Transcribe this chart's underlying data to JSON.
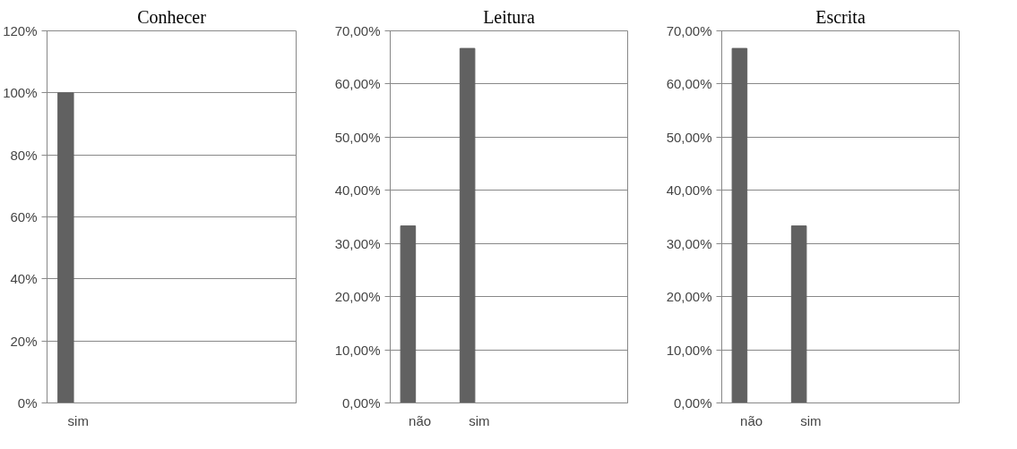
{
  "chart_data": [
    {
      "type": "bar",
      "title": "Conhecer",
      "categories": [
        "sim",
        null,
        null,
        null
      ],
      "series": [
        {
          "color": "#616161",
          "values": [
            100,
            null,
            null,
            null
          ]
        }
      ],
      "ylim": [
        0,
        120
      ],
      "yticks": [
        {
          "value": 0,
          "label": "0%"
        },
        {
          "value": 20,
          "label": "20%"
        },
        {
          "value": 40,
          "label": "40%"
        },
        {
          "value": 60,
          "label": "60%"
        },
        {
          "value": 80,
          "label": "80%"
        },
        {
          "value": 100,
          "label": "100%"
        },
        {
          "value": 120,
          "label": "120%"
        }
      ],
      "grid": "y"
    },
    {
      "type": "bar",
      "title": "Leitura",
      "categories": [
        "não",
        "sim",
        null,
        null
      ],
      "series": [
        {
          "color": "#616161",
          "values": [
            33.3,
            66.7,
            null,
            null
          ]
        }
      ],
      "ylim": [
        0,
        70
      ],
      "yticks": [
        {
          "value": 0,
          "label": "0,00%"
        },
        {
          "value": 10,
          "label": "10,00%"
        },
        {
          "value": 20,
          "label": "20,00%"
        },
        {
          "value": 30,
          "label": "30,00%"
        },
        {
          "value": 40,
          "label": "40,00%"
        },
        {
          "value": 50,
          "label": "50,00%"
        },
        {
          "value": 60,
          "label": "60,00%"
        },
        {
          "value": 70,
          "label": "70,00%"
        }
      ],
      "grid": "y"
    },
    {
      "type": "bar",
      "title": "Escrita",
      "categories": [
        "não",
        "sim",
        null,
        null
      ],
      "series": [
        {
          "color": "#616161",
          "values": [
            66.7,
            33.3,
            null,
            null
          ]
        }
      ],
      "ylim": [
        0,
        70
      ],
      "yticks": [
        {
          "value": 0,
          "label": "0,00%"
        },
        {
          "value": 10,
          "label": "10,00%"
        },
        {
          "value": 20,
          "label": "20,00%"
        },
        {
          "value": 30,
          "label": "30,00%"
        },
        {
          "value": 40,
          "label": "40,00%"
        },
        {
          "value": 50,
          "label": "50,00%"
        },
        {
          "value": 60,
          "label": "60,00%"
        },
        {
          "value": 70,
          "label": "70,00%"
        }
      ],
      "grid": "y"
    }
  ]
}
